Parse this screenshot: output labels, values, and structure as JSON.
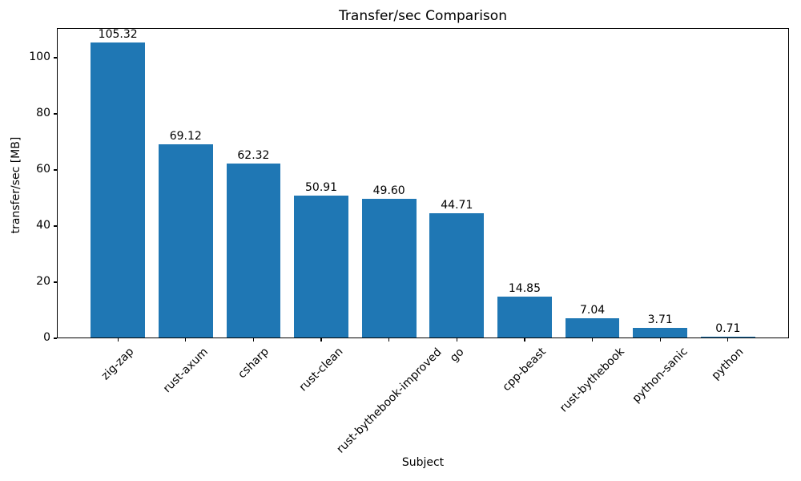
{
  "chart_data": {
    "type": "bar",
    "title": "Transfer/sec Comparison",
    "xlabel": "Subject",
    "ylabel": "transfer/sec [MB]",
    "categories": [
      "zig-zap",
      "rust-axum",
      "csharp",
      "rust-clean",
      "rust-bythebook-improved",
      "go",
      "cpp-beast",
      "rust-bythebook",
      "python-sanic",
      "python"
    ],
    "values": [
      105.32,
      69.12,
      62.32,
      50.91,
      49.6,
      44.71,
      14.85,
      7.04,
      3.71,
      0.71
    ],
    "value_labels": [
      "105.32",
      "69.12",
      "62.32",
      "50.91",
      "49.60",
      "44.71",
      "14.85",
      "7.04",
      "3.71",
      "0.71"
    ],
    "yticks": [
      0,
      20,
      40,
      60,
      80,
      100
    ],
    "ylim": [
      0,
      110.59
    ],
    "xlim": [
      -0.9,
      9.9
    ],
    "bar_width_units": 0.8,
    "bar_color": "#1f77b4",
    "spine_color": "#000000",
    "text_color": "#000000",
    "grid": false,
    "legend": null,
    "x_tick_rotation_deg": 45
  }
}
